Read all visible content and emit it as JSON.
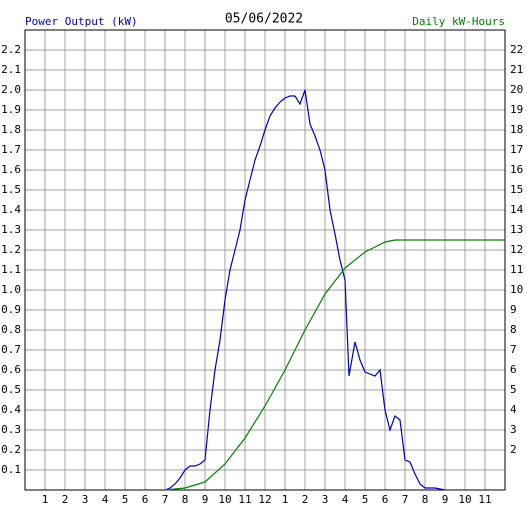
{
  "chart_data": {
    "type": "line",
    "title": "05/06/2022",
    "y_label": "Power Output (kW)",
    "y2_label": "Daily kW-Hours",
    "xlim": [
      0,
      24
    ],
    "xticks": [
      1,
      2,
      3,
      4,
      5,
      6,
      7,
      8,
      9,
      10,
      11,
      12,
      {
        "value": 13,
        "label": "1"
      },
      {
        "value": 14,
        "label": "2"
      },
      {
        "value": 15,
        "label": "3"
      },
      {
        "value": 16,
        "label": "4"
      },
      {
        "value": 17,
        "label": "5"
      },
      {
        "value": 18,
        "label": "6"
      },
      {
        "value": 19,
        "label": "7"
      },
      {
        "value": 20,
        "label": "8"
      },
      {
        "value": 21,
        "label": "9"
      },
      {
        "value": 22,
        "label": "10"
      },
      {
        "value": 23,
        "label": "11"
      }
    ],
    "ylim": [
      0,
      2.3
    ],
    "yticks": [
      0.1,
      0.2,
      0.3,
      0.4,
      0.5,
      0.6,
      0.7,
      0.8,
      0.9,
      {
        "value": 1,
        "label": "1.0"
      },
      1.1,
      1.2,
      1.3,
      1.4,
      1.5,
      1.6,
      1.7,
      1.8,
      1.9,
      {
        "value": 2,
        "label": "2.0"
      },
      2.1,
      2.2
    ],
    "y2lim": [
      0,
      23
    ],
    "y2ticks": [
      2,
      3,
      4,
      5,
      6,
      7,
      8,
      9,
      10,
      11,
      12,
      13,
      14,
      15,
      16,
      17,
      18,
      19,
      20,
      21,
      22
    ],
    "grid": true,
    "series": [
      {
        "color": "#0000c0",
        "axis": "y",
        "x": [
          7,
          7.25,
          7.5,
          7.75,
          8,
          8.25,
          8.5,
          8.75,
          9,
          9.25,
          9.5,
          9.75,
          10,
          10.25,
          10.5,
          10.75,
          11,
          11.25,
          11.5,
          11.75,
          12,
          12.25,
          12.5,
          12.75,
          13,
          13.25,
          13.5,
          13.75,
          14,
          14.25,
          14.5,
          14.75,
          15,
          15.25,
          15.5,
          15.75,
          16,
          16.2,
          16.5,
          16.75,
          17,
          17.25,
          17.5,
          17.75,
          18,
          18.25,
          18.5,
          18.75,
          19,
          19.25,
          19.5,
          19.75,
          20,
          20.5,
          21
        ],
        "values": [
          0,
          0.01,
          0.03,
          0.06,
          0.1,
          0.12,
          0.12,
          0.13,
          0.15,
          0.4,
          0.6,
          0.75,
          0.95,
          1.1,
          1.2,
          1.3,
          1.45,
          1.55,
          1.65,
          1.72,
          1.8,
          1.87,
          1.91,
          1.94,
          1.96,
          1.97,
          1.97,
          1.93,
          2.0,
          1.83,
          1.77,
          1.7,
          1.6,
          1.4,
          1.28,
          1.15,
          1.05,
          0.57,
          0.74,
          0.65,
          0.59,
          0.58,
          0.57,
          0.6,
          0.4,
          0.3,
          0.37,
          0.35,
          0.15,
          0.14,
          0.08,
          0.03,
          0.01,
          0.01,
          0
        ]
      },
      {
        "color": "#008000",
        "axis": "y2",
        "x": [
          7,
          8,
          9,
          10,
          11,
          12,
          13,
          14,
          15,
          16,
          17,
          18,
          18.5,
          24
        ],
        "values": [
          0,
          0.1,
          0.4,
          1.3,
          2.6,
          4.2,
          6.0,
          8.0,
          9.8,
          11.1,
          11.9,
          12.4,
          12.5,
          12.5
        ]
      }
    ]
  }
}
